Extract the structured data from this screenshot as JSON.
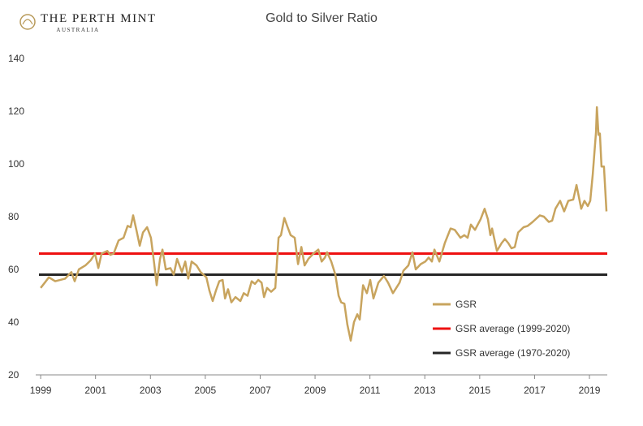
{
  "brand": {
    "name": "THE PERTH MINT",
    "sub": "AUSTRALIA"
  },
  "chart_data": {
    "type": "line",
    "title": "Gold to Silver Ratio",
    "x": [
      1999.0,
      1999.15,
      1999.3,
      1999.53,
      1999.89,
      2000.12,
      2000.24,
      2000.39,
      2000.63,
      2000.83,
      2000.98,
      2001.1,
      2001.22,
      2001.43,
      2001.54,
      2001.66,
      2001.84,
      2002.02,
      2002.17,
      2002.28,
      2002.37,
      2002.49,
      2002.61,
      2002.73,
      2002.88,
      2003.02,
      2003.14,
      2003.23,
      2003.35,
      2003.44,
      2003.56,
      2003.73,
      2003.85,
      2003.97,
      2004.15,
      2004.27,
      2004.38,
      2004.5,
      2004.68,
      2004.83,
      2005.04,
      2005.15,
      2005.27,
      2005.39,
      2005.51,
      2005.63,
      2005.72,
      2005.83,
      2005.95,
      2006.1,
      2006.28,
      2006.4,
      2006.54,
      2006.69,
      2006.81,
      2006.93,
      2007.05,
      2007.14,
      2007.25,
      2007.4,
      2007.55,
      2007.67,
      2007.76,
      2007.88,
      2008.0,
      2008.11,
      2008.26,
      2008.38,
      2008.5,
      2008.62,
      2008.76,
      2008.94,
      2009.12,
      2009.24,
      2009.36,
      2009.44,
      2009.59,
      2009.74,
      2009.86,
      2009.95,
      2010.07,
      2010.18,
      2010.3,
      2010.42,
      2010.54,
      2010.63,
      2010.75,
      2010.89,
      2011.01,
      2011.13,
      2011.31,
      2011.51,
      2011.66,
      2011.84,
      2011.96,
      2012.08,
      2012.22,
      2012.4,
      2012.55,
      2012.67,
      2012.85,
      2013.02,
      2013.14,
      2013.26,
      2013.35,
      2013.53,
      2013.73,
      2013.94,
      2014.09,
      2014.3,
      2014.44,
      2014.56,
      2014.68,
      2014.83,
      2015.03,
      2015.18,
      2015.3,
      2015.39,
      2015.45,
      2015.63,
      2015.8,
      2015.92,
      2016.04,
      2016.16,
      2016.28,
      2016.4,
      2016.6,
      2016.75,
      2016.93,
      2017.19,
      2017.34,
      2017.52,
      2017.64,
      2017.76,
      2017.93,
      2018.08,
      2018.23,
      2018.41,
      2018.53,
      2018.7,
      2018.82,
      2018.94,
      2019.03,
      2019.12,
      2019.24,
      2019.27,
      2019.33,
      2019.38,
      2019.44,
      2019.53,
      2019.62
    ],
    "series": [
      {
        "name": "GSR",
        "color": "#c8a45e",
        "values": [
          53,
          55,
          57,
          55.5,
          56.5,
          59,
          55.5,
          60,
          61.5,
          63.5,
          66,
          60.5,
          66,
          67,
          65.5,
          66,
          71,
          72,
          76.5,
          76,
          80.5,
          75,
          69,
          74,
          76,
          72,
          62,
          54,
          64,
          67.5,
          60,
          60.5,
          58,
          64,
          59,
          63,
          56.5,
          63,
          61.5,
          59,
          57,
          52,
          48,
          52,
          55.5,
          56,
          49,
          52.5,
          47.5,
          49.5,
          48,
          51,
          50,
          55.5,
          54.5,
          56,
          55,
          49.5,
          53,
          51.5,
          53,
          72,
          73,
          79.5,
          76,
          73,
          72,
          62,
          68.5,
          61.5,
          64,
          66,
          67.5,
          63,
          64.5,
          66.5,
          63,
          58,
          50,
          47.5,
          47,
          39,
          33,
          40,
          43,
          41,
          54,
          51,
          56,
          49,
          55,
          57.5,
          55,
          51,
          53,
          55,
          59.5,
          61.5,
          66.5,
          60,
          62,
          63,
          64.5,
          63,
          67.5,
          63,
          70,
          75.5,
          75,
          72,
          73,
          72,
          77,
          75,
          79,
          83,
          79,
          73,
          75.5,
          67,
          70,
          71.5,
          70,
          68,
          68.5,
          74,
          76,
          76.5,
          78,
          80.5,
          80,
          78,
          78.5,
          83,
          86,
          82,
          86,
          86.5,
          92,
          83,
          86,
          84,
          86,
          96,
          112,
          121.5,
          111,
          111.5,
          99,
          99,
          82
        ]
      }
    ],
    "reference_lines": [
      {
        "name": "GSR average (1999-2020)",
        "color": "#ee1111",
        "value": 66
      },
      {
        "name": "GSR average (1970-2020)",
        "color": "#262626",
        "value": 58
      }
    ],
    "xlim": [
      1998.82,
      2019.65
    ],
    "xticks": [
      1999,
      2001,
      2003,
      2005,
      2007,
      2009,
      2011,
      2013,
      2015,
      2017,
      2019
    ],
    "ylim": [
      20,
      140
    ],
    "yticks": [
      20,
      40,
      60,
      80,
      100,
      120,
      140
    ],
    "grid": false,
    "legend": "lower-right"
  }
}
